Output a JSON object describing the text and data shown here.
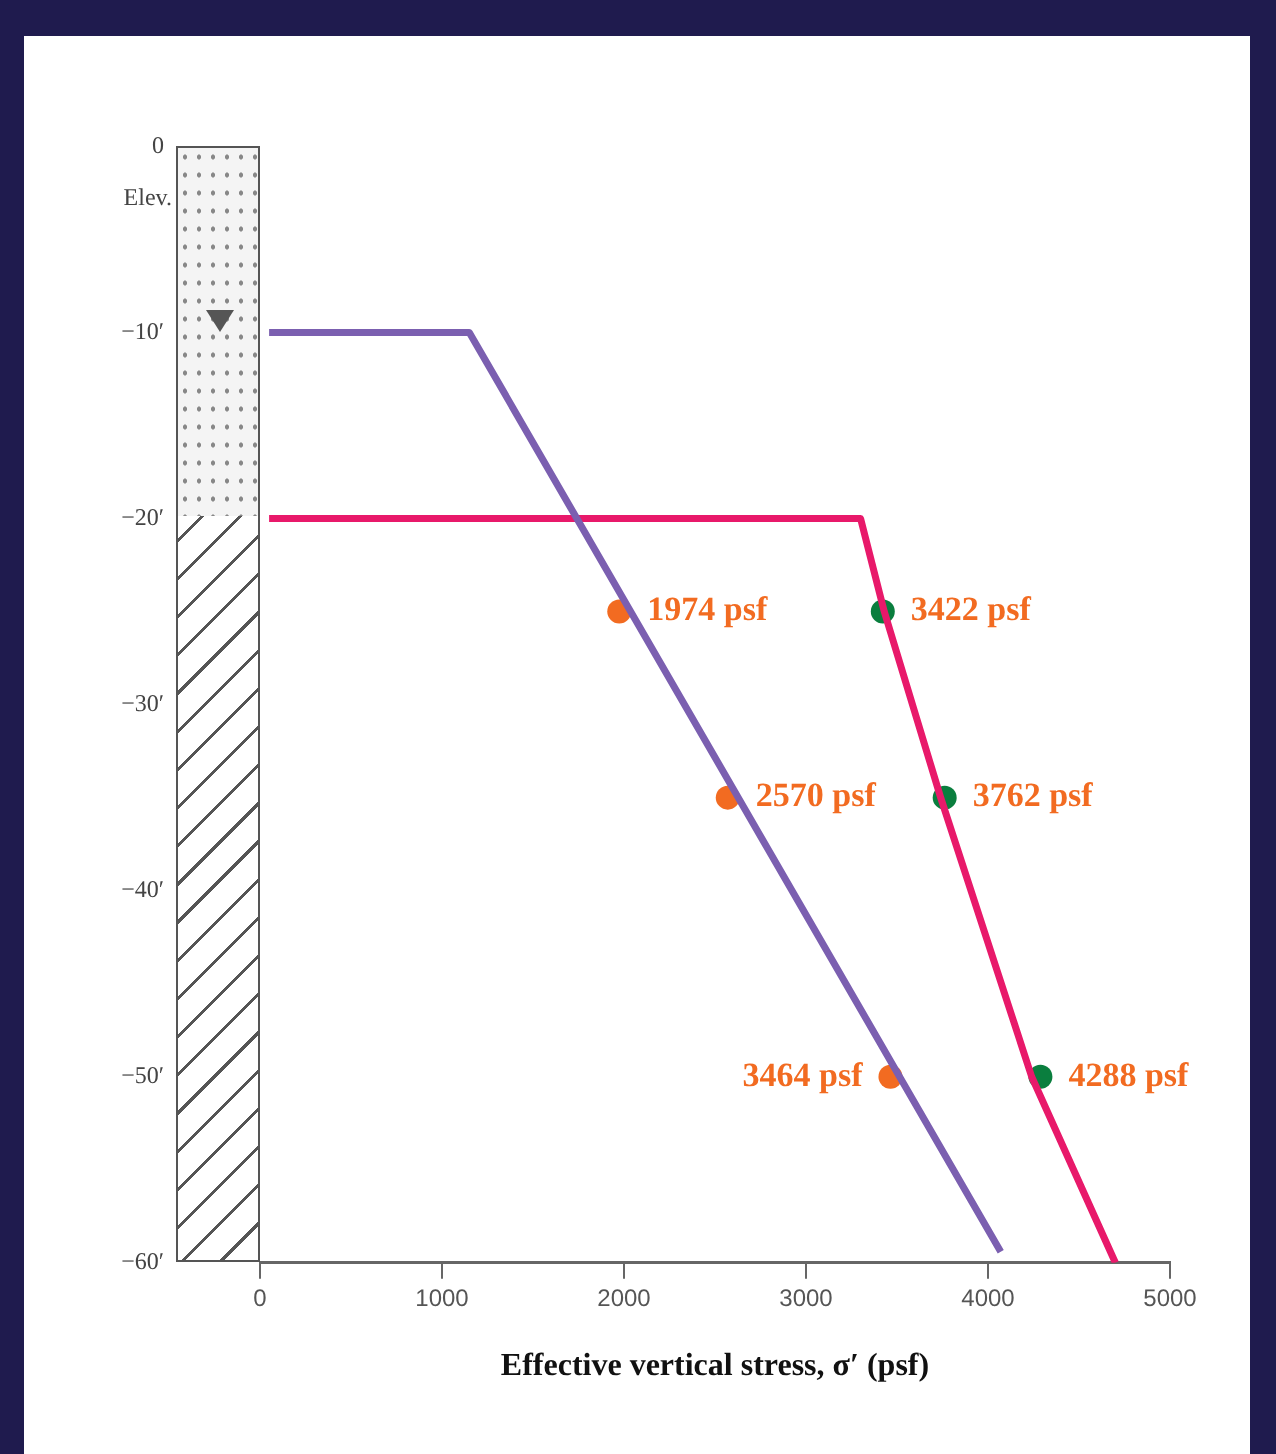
{
  "chart_data": {
    "type": "line",
    "xlabel": "Effective vertical stress, σ′ (psf)",
    "ylabel": "Elev.",
    "xlim": [
      0,
      5000
    ],
    "xticks": [
      0,
      1000,
      2000,
      3000,
      4000,
      5000
    ],
    "ylim": [
      -60,
      0
    ],
    "yticks": [
      {
        "value": 0,
        "label": "0"
      },
      {
        "value": -10,
        "label": "−10′"
      },
      {
        "value": -20,
        "label": "−20′"
      },
      {
        "value": -30,
        "label": "−30′"
      },
      {
        "value": -40,
        "label": "−40′"
      },
      {
        "value": -50,
        "label": "−50′"
      },
      {
        "value": -60,
        "label": "−60′"
      }
    ],
    "grid": false,
    "legend": false,
    "series": [
      {
        "marker": "none",
        "color": "#7b5fb0",
        "x": [
          50,
          1150,
          4070
        ],
        "values": [
          -10,
          -10,
          -59.4
        ]
      },
      {
        "marker": "none",
        "color": "#e8196a",
        "x": [
          50,
          3300,
          3430,
          3740,
          4240,
          4700
        ],
        "values": [
          -20,
          -20,
          -25,
          -35,
          -50,
          -60
        ]
      },
      {
        "type": "scatter",
        "marker": "circle",
        "color": "#f26b21",
        "x": [
          1974,
          2570,
          3464
        ],
        "values": [
          -25,
          -35,
          -50
        ]
      },
      {
        "type": "scatter",
        "marker": "circle",
        "color": "#0a7e3e",
        "x": [
          3422,
          3762,
          4288
        ],
        "values": [
          -25,
          -35,
          -50
        ]
      }
    ],
    "annotations": [
      {
        "text": "1974 psf",
        "x": 1974,
        "y": -25
      },
      {
        "text": "2570 psf",
        "x": 2570,
        "y": -35
      },
      {
        "text": "3464 psf",
        "x": 3464,
        "y": -50
      },
      {
        "text": "3422 psf",
        "x": 3422,
        "y": -25
      },
      {
        "text": "3762 psf",
        "x": 3762,
        "y": -35
      },
      {
        "text": "4288 psf",
        "x": 4288,
        "y": -50
      }
    ]
  }
}
